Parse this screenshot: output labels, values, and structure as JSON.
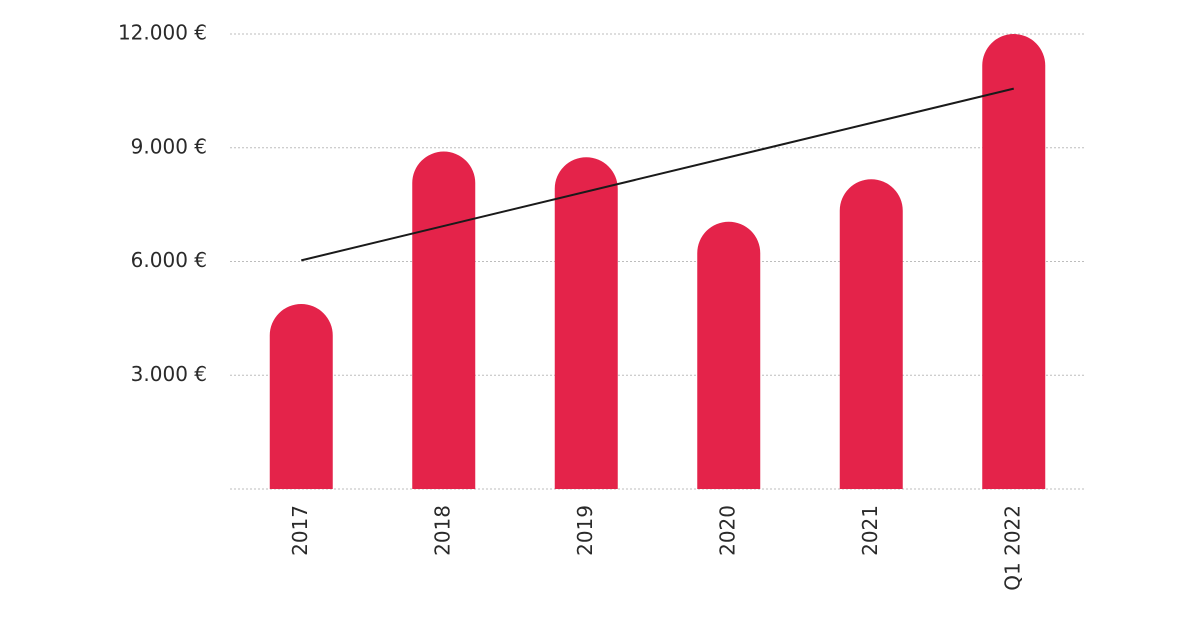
{
  "chart_data": {
    "type": "bar",
    "categories": [
      "2017",
      "2018",
      "2019",
      "2020",
      "2021",
      "Q1 2022"
    ],
    "values": [
      4880,
      8900,
      8750,
      7050,
      8170,
      12000
    ],
    "color": "#e4234a",
    "trend_values": [
      6030,
      10560
    ],
    "trend_color": "#1a1a1a",
    "ylim": [
      0,
      12000
    ],
    "yticks": [
      {
        "value": 3000,
        "label": "3.000 €"
      },
      {
        "value": 6000,
        "label": "6.000 €"
      },
      {
        "value": 9000,
        "label": "9.000 €"
      },
      {
        "value": 12000,
        "label": "12.000 €"
      }
    ],
    "grid": true
  }
}
